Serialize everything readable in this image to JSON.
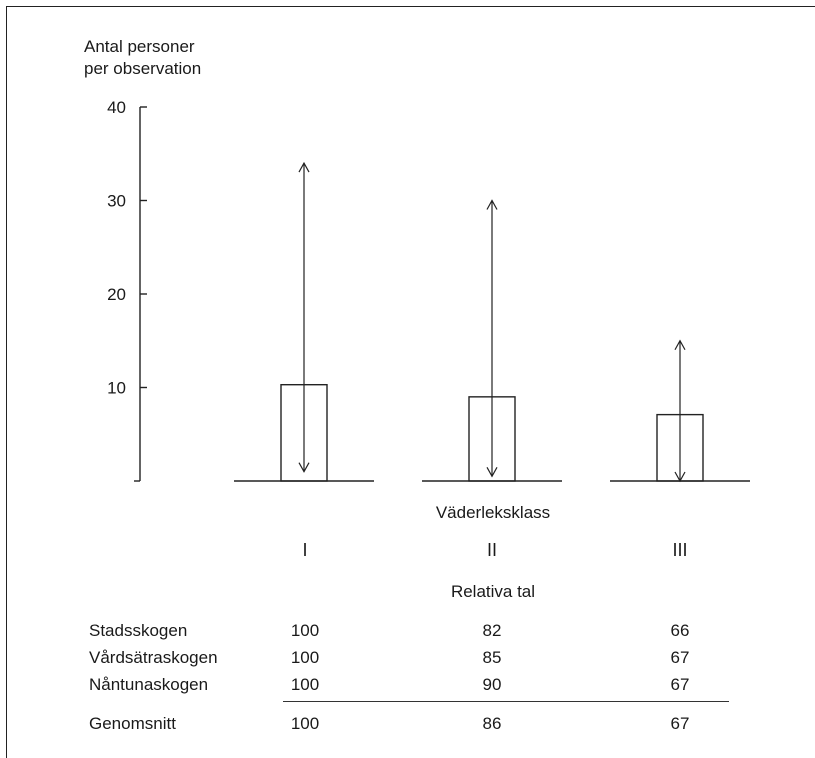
{
  "chart_data": {
    "type": "bar",
    "ylabel_lines": [
      "Antal personer",
      "per observation"
    ],
    "yticks": [
      10,
      20,
      30,
      40
    ],
    "ylim": [
      0,
      40
    ],
    "xlabel": "Väderleksklass",
    "categories": [
      "I",
      "II",
      "III"
    ],
    "values": [
      10.3,
      9.0,
      7.1
    ],
    "range_high": [
      34,
      30,
      15
    ],
    "range_low": [
      1,
      0.5,
      0
    ],
    "grid": false
  },
  "table": {
    "title": "Relativa tal",
    "rows": [
      {
        "name": "Stadsskogen",
        "v": [
          "100",
          "82",
          "66"
        ]
      },
      {
        "name": "Vårdsätraskogen",
        "v": [
          "100",
          "85",
          "67"
        ]
      },
      {
        "name": "Nåntunaskogen",
        "v": [
          "100",
          "90",
          "67"
        ]
      }
    ],
    "average": {
      "name": "Genomsnitt",
      "v": [
        "100",
        "86",
        "67"
      ]
    }
  }
}
